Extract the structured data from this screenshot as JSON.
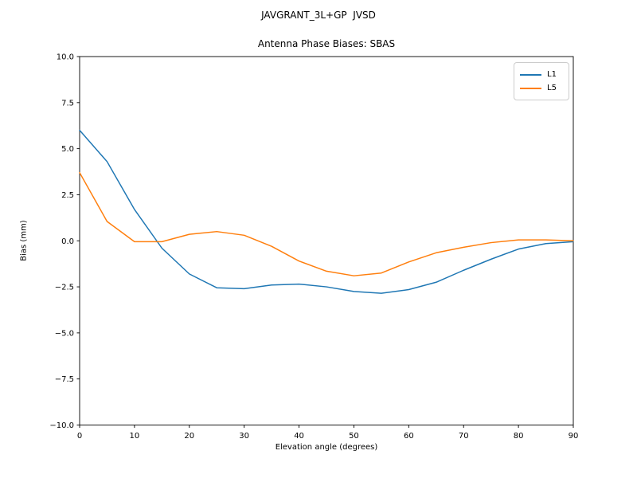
{
  "chart_data": {
    "type": "line",
    "title": "JAVGRANT_3L+GP  JVSD",
    "subtitle": "Antenna Phase Biases: SBAS",
    "xlabel": "Elevation angle (degrees)",
    "ylabel": "Bias (mm)",
    "xlim": [
      0,
      90
    ],
    "ylim": [
      -10,
      10
    ],
    "xticks": [
      0,
      10,
      20,
      30,
      40,
      50,
      60,
      70,
      80,
      90
    ],
    "xtick_labels": [
      "0",
      "10",
      "20",
      "30",
      "40",
      "50",
      "60",
      "70",
      "80",
      "90"
    ],
    "yticks": [
      10.0,
      7.5,
      5.0,
      2.5,
      0.0,
      -2.5,
      -5.0,
      -7.5,
      -10.0
    ],
    "ytick_labels": [
      "10.0",
      "7.5",
      "5.0",
      "2.5",
      "0.0",
      "−2.5",
      "−5.0",
      "−7.5",
      "−10.0"
    ],
    "grid": false,
    "x": [
      0,
      5,
      10,
      15,
      20,
      25,
      30,
      35,
      40,
      45,
      50,
      55,
      60,
      65,
      70,
      75,
      80,
      85,
      90
    ],
    "series": [
      {
        "name": "L1",
        "color": "#1f77b4",
        "values": [
          6.0,
          4.3,
          1.7,
          -0.4,
          -1.8,
          -2.55,
          -2.6,
          -2.4,
          -2.35,
          -2.5,
          -2.75,
          -2.85,
          -2.65,
          -2.25,
          -1.6,
          -1.0,
          -0.45,
          -0.15,
          -0.05
        ]
      },
      {
        "name": "L5",
        "color": "#ff7f0e",
        "values": [
          3.7,
          1.05,
          -0.05,
          -0.05,
          0.35,
          0.5,
          0.3,
          -0.3,
          -1.1,
          -1.65,
          -1.9,
          -1.75,
          -1.15,
          -0.65,
          -0.35,
          -0.1,
          0.05,
          0.05,
          0.0
        ]
      }
    ],
    "legend": {
      "position": "upper right",
      "entries": [
        "L1",
        "L5"
      ]
    }
  }
}
